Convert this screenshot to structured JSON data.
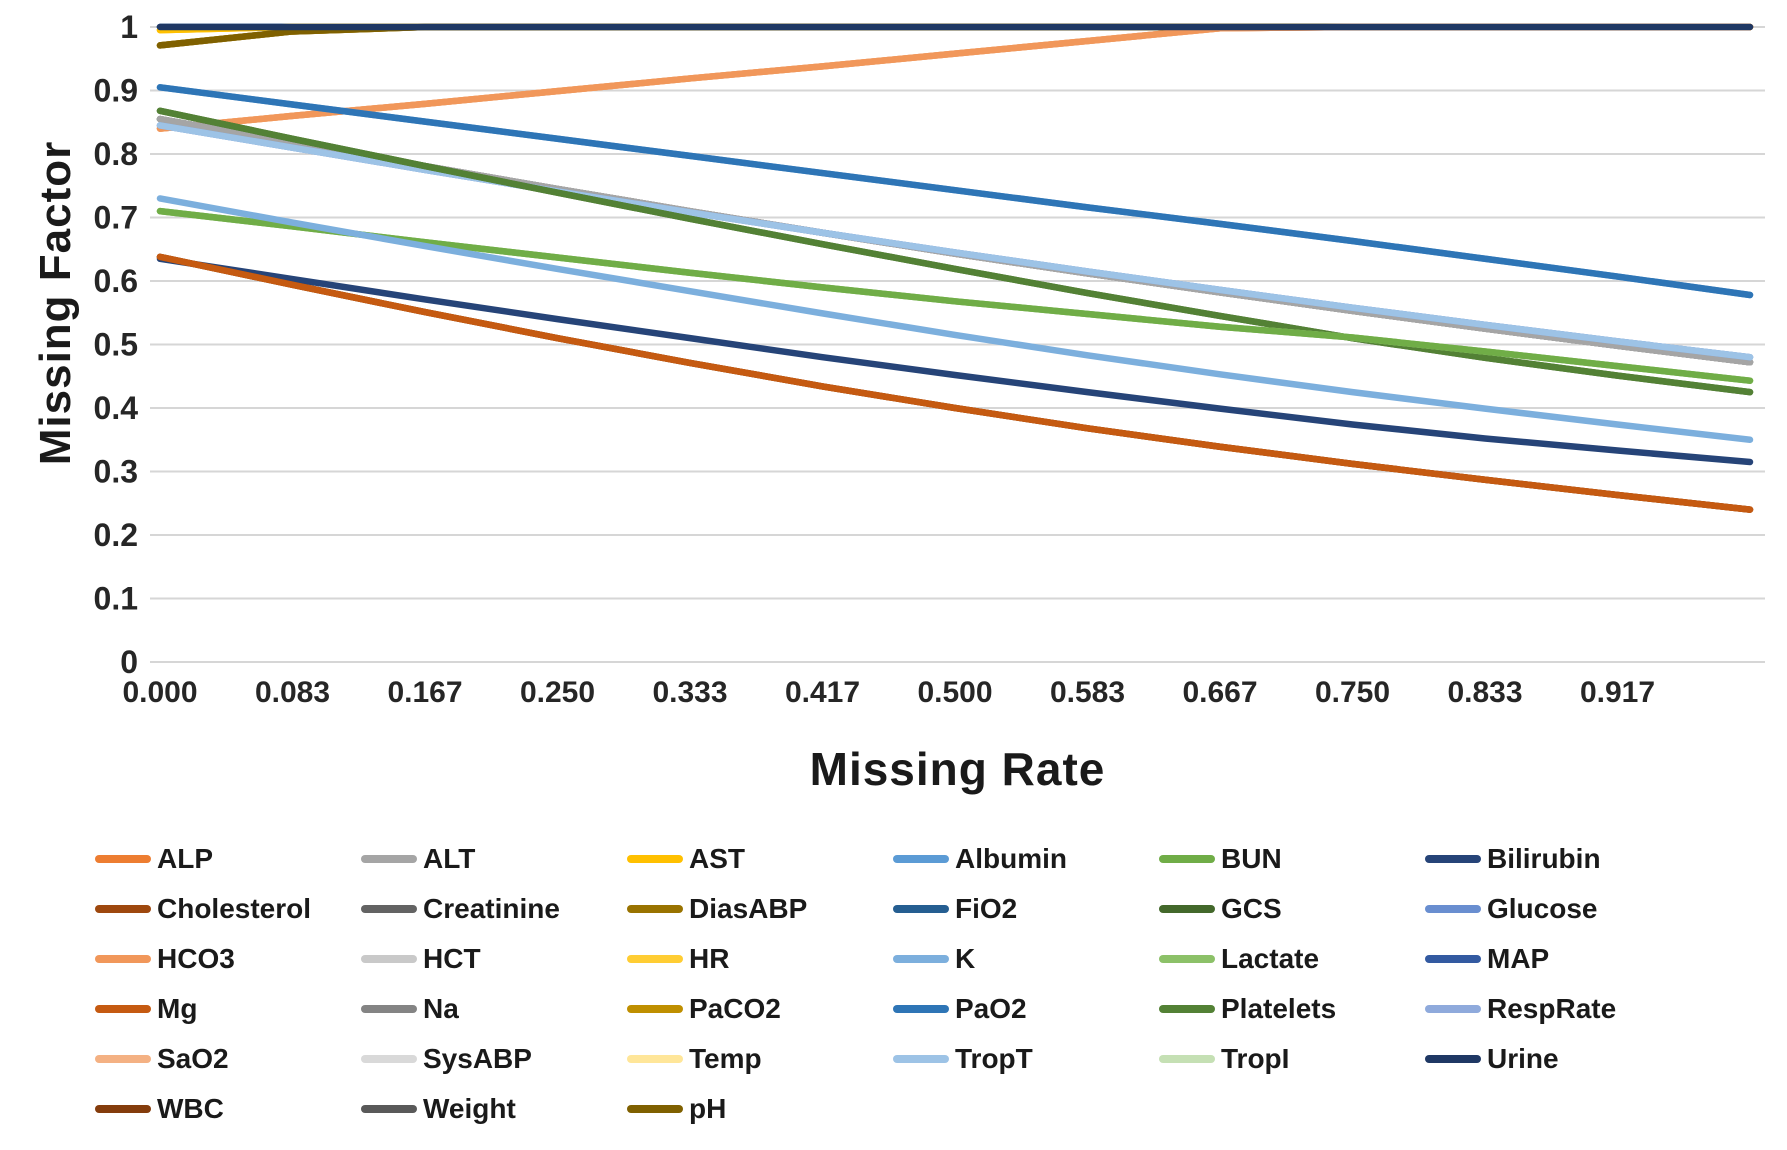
{
  "chart_data": {
    "type": "line",
    "title": "",
    "xlabel": "Missing Rate",
    "ylabel": "Missing Factor",
    "xlim": [
      0,
      1
    ],
    "ylim": [
      0,
      1
    ],
    "grid": true,
    "gridline_color": "#d6d6d6",
    "background_color": "#ffffff",
    "legend_position": "bottom",
    "x": [
      0.0,
      0.083,
      0.167,
      0.25,
      0.333,
      0.417,
      0.5,
      0.583,
      0.667,
      0.75,
      0.833,
      0.917,
      1.0
    ],
    "x_tick_labels": [
      "0.000",
      "0.083",
      "0.167",
      "0.250",
      "0.333",
      "0.417",
      "0.500",
      "0.583",
      "0.667",
      "0.750",
      "0.833",
      "0.917"
    ],
    "y_ticks": [
      "1",
      "0.9",
      "0.8",
      "0.7",
      "0.6",
      "0.5",
      "0.4",
      "0.3",
      "0.2",
      "0.1",
      "0"
    ],
    "legend_order": [
      "ALP",
      "ALT",
      "AST",
      "Albumin",
      "BUN",
      "Bilirubin",
      "Cholesterol",
      "Creatinine",
      "DiasABP",
      "FiO2",
      "GCS",
      "Glucose",
      "HCO3",
      "HCT",
      "HR",
      "K",
      "Lactate",
      "MAP",
      "Mg",
      "Na",
      "PaCO2",
      "PaO2",
      "Platelets",
      "RespRate",
      "SaO2",
      "SysABP",
      "Temp",
      "TropT",
      "TropI",
      "Urine",
      "WBC",
      "Weight",
      "pH"
    ],
    "series": [
      {
        "name": "MAP",
        "color": "#335AA1",
        "values": [
          1,
          1,
          1,
          1,
          1,
          1,
          1,
          1,
          1,
          1,
          1,
          1,
          1
        ]
      },
      {
        "name": "FiO2",
        "color": "#255E91",
        "values": [
          1,
          1,
          1,
          1,
          1,
          1,
          1,
          1,
          1,
          1,
          1,
          1,
          1
        ]
      },
      {
        "name": "Temp",
        "color": "#FFE699",
        "values": [
          0.995,
          1,
          1,
          1,
          1,
          1,
          1,
          1,
          1,
          1,
          1,
          1,
          1
        ]
      },
      {
        "name": "HR",
        "color": "#FFCD33",
        "values": [
          0.995,
          1,
          1,
          1,
          1,
          1,
          1,
          1,
          1,
          1,
          1,
          1,
          1
        ]
      },
      {
        "name": "AST",
        "color": "#FFC000",
        "values": [
          0.995,
          1,
          1,
          1,
          1,
          1,
          1,
          1,
          1,
          1,
          1,
          1,
          1
        ]
      },
      {
        "name": "SysABP",
        "color": "#D9D9D9",
        "values": [
          0.971,
          0.993,
          1,
          1,
          1,
          1,
          1,
          1,
          1,
          1,
          1,
          1,
          1
        ]
      },
      {
        "name": "DiasABP",
        "color": "#997300",
        "values": [
          0.971,
          0.993,
          1,
          1,
          1,
          1,
          1,
          1,
          1,
          1,
          1,
          1,
          1
        ]
      },
      {
        "name": "PaCO2",
        "color": "#BF8F00",
        "values": [
          0.971,
          0.993,
          1,
          1,
          1,
          1,
          1,
          1,
          1,
          1,
          1,
          1,
          1
        ]
      },
      {
        "name": "pH",
        "color": "#7F6000",
        "values": [
          0.971,
          0.993,
          1,
          1,
          1,
          1,
          1,
          1,
          1,
          1,
          1,
          1,
          1
        ]
      },
      {
        "name": "ALP",
        "color": "#ED7D31",
        "values": [
          0.84,
          0.86,
          0.879,
          0.899,
          0.919,
          0.938,
          0.958,
          0.978,
          0.998,
          1,
          1,
          1,
          1
        ]
      },
      {
        "name": "SaO2",
        "color": "#F4B183",
        "values": [
          0.84,
          0.86,
          0.879,
          0.899,
          0.919,
          0.938,
          0.958,
          0.978,
          0.998,
          1,
          1,
          1,
          1
        ]
      },
      {
        "name": "HCO3",
        "color": "#F1975A",
        "values": [
          0.84,
          0.86,
          0.879,
          0.899,
          0.919,
          0.938,
          0.958,
          0.978,
          0.998,
          1,
          1,
          1,
          1
        ]
      },
      {
        "name": "Weight",
        "color": "#595959",
        "values": [
          0.855,
          0.818,
          0.781,
          0.745,
          0.71,
          0.676,
          0.643,
          0.612,
          0.582,
          0.553,
          0.525,
          0.498,
          0.472
        ]
      },
      {
        "name": "Na",
        "color": "#848484",
        "values": [
          0.855,
          0.818,
          0.781,
          0.745,
          0.71,
          0.676,
          0.643,
          0.612,
          0.582,
          0.553,
          0.525,
          0.498,
          0.472
        ]
      },
      {
        "name": "Creatinine",
        "color": "#636363",
        "values": [
          0.855,
          0.818,
          0.781,
          0.745,
          0.71,
          0.676,
          0.643,
          0.612,
          0.582,
          0.553,
          0.525,
          0.498,
          0.472
        ]
      },
      {
        "name": "HCT",
        "color": "#C9C9C9",
        "values": [
          0.855,
          0.818,
          0.781,
          0.745,
          0.71,
          0.676,
          0.643,
          0.612,
          0.582,
          0.553,
          0.525,
          0.498,
          0.472
        ]
      },
      {
        "name": "ALT",
        "color": "#A5A5A5",
        "values": [
          0.855,
          0.818,
          0.781,
          0.745,
          0.71,
          0.676,
          0.643,
          0.612,
          0.582,
          0.553,
          0.525,
          0.498,
          0.472
        ]
      },
      {
        "name": "Glucose",
        "color": "#698ED0",
        "values": [
          0.845,
          0.81,
          0.775,
          0.741,
          0.708,
          0.676,
          0.645,
          0.615,
          0.586,
          0.558,
          0.531,
          0.505,
          0.48
        ]
      },
      {
        "name": "RespRate",
        "color": "#8FAADC",
        "values": [
          0.845,
          0.81,
          0.775,
          0.741,
          0.708,
          0.676,
          0.645,
          0.615,
          0.586,
          0.558,
          0.531,
          0.505,
          0.48
        ]
      },
      {
        "name": "TropT",
        "color": "#9DC3E6",
        "values": [
          0.845,
          0.81,
          0.775,
          0.741,
          0.708,
          0.676,
          0.645,
          0.615,
          0.586,
          0.558,
          0.531,
          0.505,
          0.48
        ]
      },
      {
        "name": "GCS",
        "color": "#43682B",
        "values": [
          0.868,
          0.824,
          0.781,
          0.739,
          0.698,
          0.658,
          0.619,
          0.581,
          0.545,
          0.51,
          0.479,
          0.451,
          0.425
        ]
      },
      {
        "name": "Platelets",
        "color": "#538135",
        "values": [
          0.868,
          0.824,
          0.781,
          0.739,
          0.698,
          0.658,
          0.619,
          0.581,
          0.545,
          0.51,
          0.479,
          0.451,
          0.425
        ]
      },
      {
        "name": "TropI",
        "color": "#C5E0B4",
        "values": [
          0.71,
          0.686,
          0.661,
          0.637,
          0.613,
          0.59,
          0.568,
          0.548,
          0.528,
          0.511,
          0.489,
          0.466,
          0.443
        ]
      },
      {
        "name": "Lactate",
        "color": "#8CC168",
        "values": [
          0.71,
          0.686,
          0.661,
          0.637,
          0.613,
          0.59,
          0.568,
          0.548,
          0.528,
          0.511,
          0.489,
          0.466,
          0.443
        ]
      },
      {
        "name": "BUN",
        "color": "#70AD47",
        "values": [
          0.71,
          0.686,
          0.661,
          0.637,
          0.613,
          0.59,
          0.568,
          0.548,
          0.528,
          0.511,
          0.489,
          0.466,
          0.443
        ]
      },
      {
        "name": "K",
        "color": "#7CAFDD",
        "values": [
          0.73,
          0.692,
          0.655,
          0.619,
          0.584,
          0.549,
          0.515,
          0.483,
          0.453,
          0.425,
          0.399,
          0.374,
          0.35
        ]
      },
      {
        "name": "Albumin",
        "color": "#5B9BD5",
        "values": [
          0.905,
          0.878,
          0.851,
          0.824,
          0.797,
          0.77,
          0.743,
          0.716,
          0.69,
          0.663,
          0.635,
          0.607,
          0.578
        ]
      },
      {
        "name": "PaO2",
        "color": "#2E75B6",
        "values": [
          0.905,
          0.878,
          0.851,
          0.824,
          0.797,
          0.77,
          0.743,
          0.716,
          0.69,
          0.663,
          0.635,
          0.607,
          0.578
        ]
      },
      {
        "name": "Bilirubin",
        "color": "#264478",
        "values": [
          0.635,
          0.603,
          0.571,
          0.54,
          0.51,
          0.48,
          0.452,
          0.425,
          0.399,
          0.374,
          0.352,
          0.333,
          0.315
        ]
      },
      {
        "name": "WBC",
        "color": "#843C0C",
        "values": [
          0.638,
          0.594,
          0.551,
          0.51,
          0.471,
          0.434,
          0.4,
          0.368,
          0.339,
          0.312,
          0.287,
          0.263,
          0.24
        ]
      },
      {
        "name": "Cholesterol",
        "color": "#9E480E",
        "values": [
          0.638,
          0.594,
          0.551,
          0.51,
          0.471,
          0.434,
          0.4,
          0.368,
          0.339,
          0.312,
          0.287,
          0.263,
          0.24
        ]
      },
      {
        "name": "Mg",
        "color": "#C55A11",
        "values": [
          0.638,
          0.594,
          0.551,
          0.51,
          0.471,
          0.434,
          0.4,
          0.368,
          0.339,
          0.312,
          0.287,
          0.263,
          0.24
        ]
      },
      {
        "name": "Urine",
        "color": "#1F3864",
        "values": [
          1,
          1,
          1,
          1,
          1,
          1,
          1,
          1,
          1,
          1,
          1,
          1,
          1
        ]
      }
    ]
  }
}
